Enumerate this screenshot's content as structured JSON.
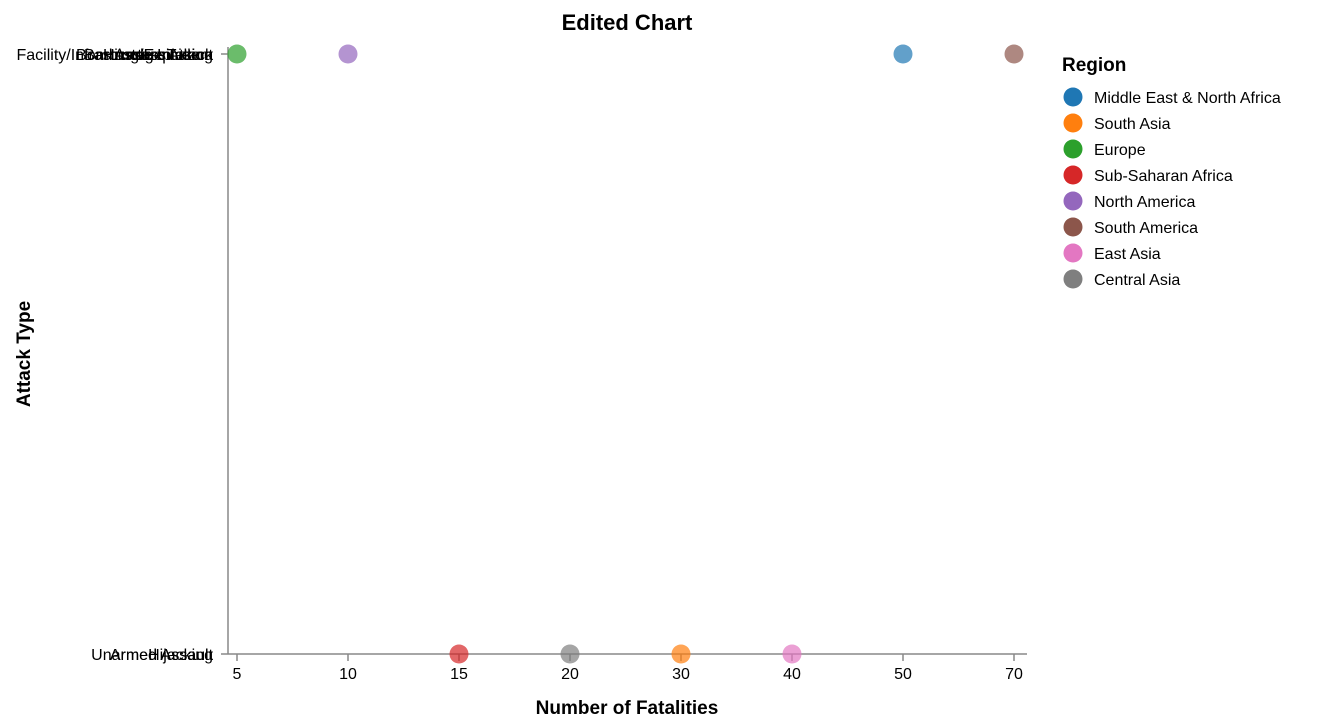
{
  "chart_data": {
    "type": "scatter",
    "title": "Edited Chart",
    "xlabel": "Number of Fatalities",
    "ylabel": "Attack Type",
    "x_scale": "ordinal",
    "x_ticks": [
      "5",
      "10",
      "15",
      "20",
      "30",
      "40",
      "50",
      "70"
    ],
    "y_ticks": [
      "Bombing/Explosion",
      "Armed Assault"
    ],
    "y_tick_overlaps": {
      "Bombing/Explosion": [
        "Bombing/Explosion",
        "Barricade Incident",
        "Assassination",
        "Hostage Taking",
        "Facility/Infrastructure Attack"
      ],
      "Armed Assault": [
        "Armed Assault",
        "Hijacking",
        "Unarmed Assault"
      ]
    },
    "grid": false,
    "legend_title": "Region",
    "legend_position": "right",
    "points": [
      {
        "x": "50",
        "y": "Bombing/Explosion",
        "region": "Middle East & North Africa"
      },
      {
        "x": "30",
        "y": "Armed Assault",
        "region": "South Asia"
      },
      {
        "x": "5",
        "y": "Bombing/Explosion",
        "region": "Europe"
      },
      {
        "x": "15",
        "y": "Armed Assault",
        "region": "Sub-Saharan Africa"
      },
      {
        "x": "10",
        "y": "Bombing/Explosion",
        "region": "North America"
      },
      {
        "x": "70",
        "y": "Bombing/Explosion",
        "region": "South America"
      },
      {
        "x": "40",
        "y": "Armed Assault",
        "region": "East Asia"
      },
      {
        "x": "20",
        "y": "Armed Assault",
        "region": "Central Asia"
      }
    ],
    "regions": [
      {
        "name": "Middle East & North Africa",
        "color": "#1f77b4"
      },
      {
        "name": "South Asia",
        "color": "#ff7f0e"
      },
      {
        "name": "Europe",
        "color": "#2ca02c"
      },
      {
        "name": "Sub-Saharan Africa",
        "color": "#d62728"
      },
      {
        "name": "North America",
        "color": "#9467bd"
      },
      {
        "name": "South America",
        "color": "#8c564b"
      },
      {
        "name": "East Asia",
        "color": "#e377c2"
      },
      {
        "name": "Central Asia",
        "color": "#7f7f7f"
      }
    ]
  }
}
